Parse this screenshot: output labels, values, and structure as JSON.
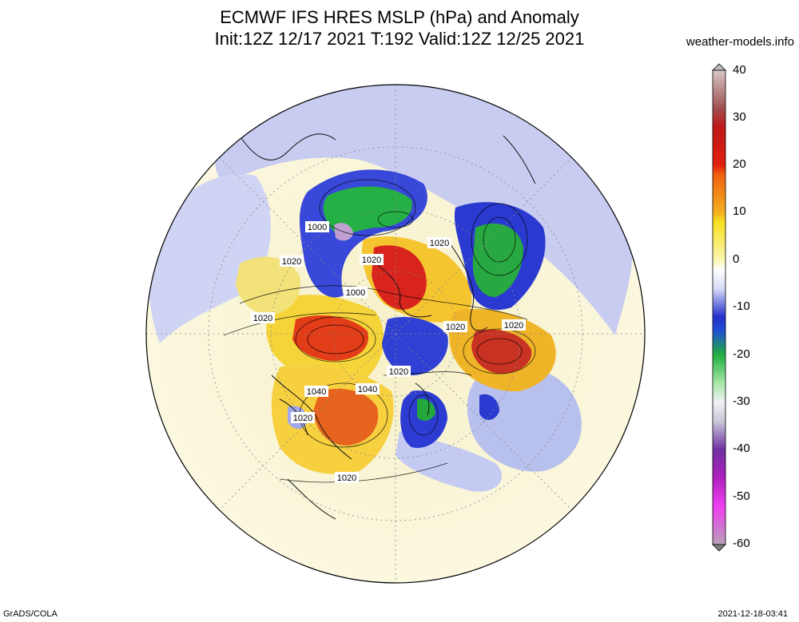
{
  "header": {
    "title_line1": "ECMWF IFS HRES MSLP (hPa) and Anomaly",
    "title_line2": "Init:12Z 12/17 2021 T:192 Valid:12Z 12/25 2021",
    "credit": "weather-models.info"
  },
  "footer": {
    "left": "GrADS/COLA",
    "right": "2021-12-18-03:41"
  },
  "colorbar": {
    "ticks": [
      "40",
      "30",
      "20",
      "10",
      "0",
      "-10",
      "-20",
      "-30",
      "-40",
      "-50",
      "-60"
    ],
    "colors": [
      "#a07070",
      "#c0281c",
      "#e86010",
      "#f8d820",
      "#ffffff",
      "#2838d0",
      "#20b040",
      "#e8e8f0",
      "#6018a0",
      "#e020e0",
      "#a878a8"
    ]
  },
  "map": {
    "isobar_labels": [
      "1000",
      "1020",
      "1020",
      "1000",
      "1020",
      "1020",
      "1020",
      "1020",
      "1020",
      "1040",
      "1040",
      "1020",
      "1020"
    ]
  }
}
